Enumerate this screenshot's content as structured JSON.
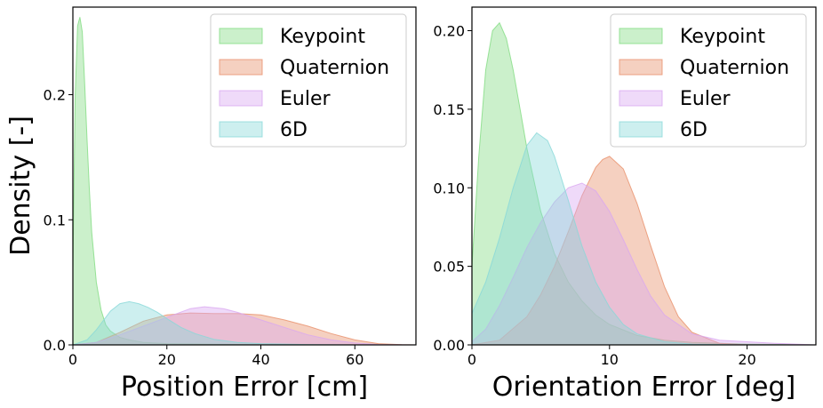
{
  "figure": {
    "ylabel": "Density [-]"
  },
  "chart_data": [
    {
      "type": "area",
      "xlabel": "Position Error [cm]",
      "ylabel": "Density [-]",
      "xlim": [
        0,
        73
      ],
      "ylim": [
        0,
        0.27
      ],
      "xticks": [
        0,
        20,
        40,
        60
      ],
      "yticks": [
        0.0,
        0.1,
        0.2
      ],
      "xtick_labels": [
        "0",
        "20",
        "40",
        "60"
      ],
      "ytick_labels": [
        "0.0",
        "0.1",
        "0.2"
      ],
      "legend": "top-right",
      "grid": false,
      "series": [
        {
          "name": "Keypoint",
          "color": "#82dc82",
          "x": [
            0,
            0.5,
            1,
            1.5,
            2,
            2.5,
            3,
            3.5,
            4,
            5,
            6,
            7,
            8,
            10,
            12,
            15,
            20,
            30,
            40,
            60,
            73
          ],
          "y": [
            0.06,
            0.2,
            0.255,
            0.262,
            0.25,
            0.21,
            0.165,
            0.125,
            0.09,
            0.05,
            0.028,
            0.016,
            0.011,
            0.006,
            0.004,
            0.002,
            0.001,
            0.0005,
            0.0002,
            0,
            0
          ]
        },
        {
          "name": "Quaternion",
          "color": "#e8906a",
          "x": [
            0,
            5,
            10,
            15,
            20,
            25,
            30,
            35,
            40,
            45,
            50,
            55,
            60,
            65,
            70,
            73
          ],
          "y": [
            0,
            0.002,
            0.01,
            0.019,
            0.024,
            0.0255,
            0.025,
            0.025,
            0.024,
            0.02,
            0.015,
            0.009,
            0.004,
            0.001,
            0.0002,
            0
          ]
        },
        {
          "name": "Euler",
          "color": "#d9a8f0",
          "x": [
            0,
            5,
            10,
            15,
            20,
            25,
            28,
            32,
            35,
            40,
            45,
            50,
            55,
            60,
            65,
            73
          ],
          "y": [
            0,
            0.002,
            0.008,
            0.015,
            0.022,
            0.029,
            0.0305,
            0.029,
            0.026,
            0.02,
            0.014,
            0.008,
            0.004,
            0.0015,
            0.0003,
            0
          ]
        },
        {
          "name": "6D",
          "color": "#88d8d8",
          "x": [
            0,
            3,
            5,
            8,
            10,
            12,
            14,
            16,
            18,
            20,
            23,
            26,
            30,
            35,
            40,
            50,
            60,
            73
          ],
          "y": [
            0,
            0.004,
            0.012,
            0.027,
            0.033,
            0.0345,
            0.033,
            0.03,
            0.026,
            0.021,
            0.014,
            0.009,
            0.0045,
            0.002,
            0.001,
            0.0003,
            0,
            0
          ]
        }
      ]
    },
    {
      "type": "area",
      "xlabel": "Orientation Error [deg]",
      "ylabel": "",
      "xlim": [
        0,
        25
      ],
      "ylim": [
        0,
        0.215
      ],
      "xticks": [
        0,
        10,
        20
      ],
      "yticks": [
        0.0,
        0.05,
        0.1,
        0.15,
        0.2
      ],
      "xtick_labels": [
        "0",
        "10",
        "20"
      ],
      "ytick_labels": [
        "0.00",
        "0.05",
        "0.10",
        "0.15",
        "0.20"
      ],
      "legend": "top-right",
      "grid": false,
      "series": [
        {
          "name": "Keypoint",
          "color": "#82dc82",
          "x": [
            0,
            0.5,
            1,
            1.5,
            2,
            2.5,
            3,
            3.5,
            4,
            5,
            6,
            7,
            8,
            9,
            10,
            12,
            14,
            16,
            20,
            25
          ],
          "y": [
            0.05,
            0.12,
            0.175,
            0.2,
            0.205,
            0.195,
            0.175,
            0.15,
            0.125,
            0.085,
            0.058,
            0.04,
            0.028,
            0.019,
            0.013,
            0.006,
            0.003,
            0.0015,
            0.0005,
            0
          ]
        },
        {
          "name": "Quaternion",
          "color": "#e8906a",
          "x": [
            0,
            2,
            4,
            5,
            6,
            7,
            8,
            9,
            9.5,
            10,
            11,
            12,
            13,
            14,
            15,
            16,
            18,
            20,
            25
          ],
          "y": [
            0,
            0.003,
            0.018,
            0.032,
            0.05,
            0.072,
            0.095,
            0.113,
            0.118,
            0.12,
            0.112,
            0.09,
            0.063,
            0.037,
            0.018,
            0.008,
            0.001,
            0,
            0
          ]
        },
        {
          "name": "Euler",
          "color": "#d9a8f0",
          "x": [
            0,
            1,
            2,
            3,
            4,
            5,
            6,
            7,
            8,
            9,
            10,
            11,
            12,
            13,
            14,
            16,
            18,
            20,
            22,
            25
          ],
          "y": [
            0.002,
            0.01,
            0.025,
            0.043,
            0.062,
            0.078,
            0.091,
            0.1,
            0.103,
            0.098,
            0.085,
            0.067,
            0.048,
            0.031,
            0.019,
            0.007,
            0.003,
            0.002,
            0.001,
            0
          ]
        },
        {
          "name": "6D",
          "color": "#88d8d8",
          "x": [
            0,
            1,
            2,
            3,
            4,
            4.7,
            5.5,
            6,
            7,
            8,
            9,
            10,
            11,
            12,
            14,
            16,
            20,
            25
          ],
          "y": [
            0.02,
            0.04,
            0.068,
            0.1,
            0.127,
            0.135,
            0.13,
            0.12,
            0.092,
            0.063,
            0.04,
            0.024,
            0.013,
            0.007,
            0.002,
            0.0005,
            0,
            0
          ]
        }
      ]
    }
  ]
}
